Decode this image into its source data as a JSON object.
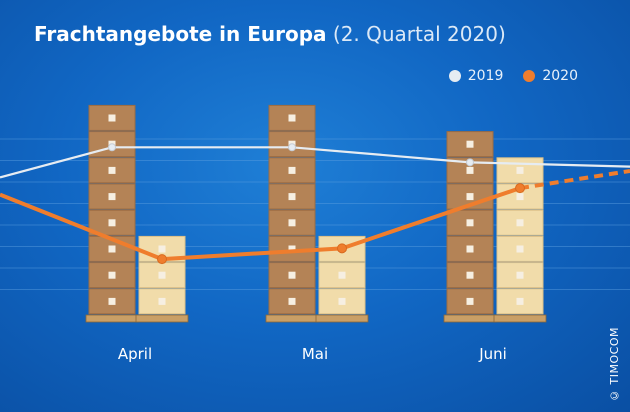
{
  "title": {
    "main": "Frachtangebote in Europa",
    "sub": "(2. Quartal 2020)"
  },
  "legend": {
    "items": [
      {
        "label": "2019",
        "color": "#e6ecf2"
      },
      {
        "label": "2020",
        "color": "#ef7d2d"
      }
    ]
  },
  "credit": "© TIMOCOM",
  "chart_data": {
    "type": "line",
    "title": "Frachtangebote in Europa (2. Quartal 2020)",
    "categories": [
      "April",
      "Mai",
      "Juni"
    ],
    "series": [
      {
        "name": "2019",
        "color": "#e6ecf2",
        "values": [
          7.8,
          7.8,
          7.1
        ],
        "incoming": 6.4,
        "outgoing": 6.9
      },
      {
        "name": "2020",
        "color": "#ef7d2d",
        "values": [
          2.6,
          3.1,
          5.9
        ],
        "incoming": 5.6,
        "outgoing": 6.7,
        "outgoing_style": "dashed"
      }
    ],
    "ylim": [
      0,
      10
    ],
    "grid": true,
    "legend_position": "top-right",
    "box_stacks": {
      "2019": [
        8,
        8,
        7
      ],
      "2020": [
        3,
        3,
        6
      ]
    }
  }
}
